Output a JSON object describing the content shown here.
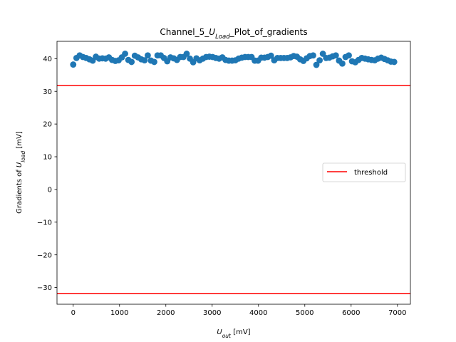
{
  "chart_data": {
    "type": "scatter",
    "title": "Channel_5_U_Load_Plot_of_gradients",
    "title_parts": {
      "pre": "Channel_5_",
      "var": "U",
      "sub": "Load",
      "post": "_Plot_of_gradients"
    },
    "xlabel": "U_out [mV]",
    "xlabel_parts": {
      "var": "U",
      "sub": "out",
      "post": " [mV]"
    },
    "ylabel": "Gradients of U_load [mV]",
    "ylabel_parts": {
      "pre": "Gradients of ",
      "var": "U",
      "sub": "load",
      "post": " [mV]"
    },
    "xlim": [
      -350,
      7280
    ],
    "ylim": [
      -35.1,
      45.3
    ],
    "xticks": [
      0,
      1000,
      2000,
      3000,
      4000,
      5000,
      6000,
      7000
    ],
    "xtick_labels": [
      "0",
      "1000",
      "2000",
      "3000",
      "4000",
      "5000",
      "6000",
      "7000"
    ],
    "yticks": [
      -30,
      -20,
      -10,
      0,
      10,
      20,
      30,
      40
    ],
    "ytick_labels": [
      "−30",
      "−20",
      "−10",
      "0",
      "10",
      "20",
      "30",
      "40"
    ],
    "grid": false,
    "legend": {
      "position": "center-right",
      "entries": [
        {
          "label": "threshold",
          "color": "#ff0000"
        }
      ]
    },
    "series": [
      {
        "type": "scatter",
        "color": "#1f77b4",
        "x": [
          0,
          70,
          140,
          210,
          280,
          350,
          420,
          490,
          560,
          630,
          700,
          770,
          840,
          910,
          980,
          1050,
          1120,
          1190,
          1260,
          1330,
          1400,
          1470,
          1540,
          1610,
          1680,
          1750,
          1820,
          1890,
          1960,
          2030,
          2100,
          2170,
          2240,
          2310,
          2380,
          2450,
          2520,
          2590,
          2660,
          2730,
          2800,
          2870,
          2940,
          3010,
          3080,
          3150,
          3220,
          3290,
          3360,
          3430,
          3500,
          3570,
          3640,
          3710,
          3780,
          3850,
          3920,
          3990,
          4060,
          4130,
          4200,
          4270,
          4340,
          4410,
          4480,
          4550,
          4620,
          4690,
          4760,
          4830,
          4900,
          4970,
          5040,
          5110,
          5180,
          5250,
          5320,
          5390,
          5460,
          5530,
          5600,
          5670,
          5740,
          5810,
          5880,
          5950,
          6020,
          6090,
          6160,
          6230,
          6300,
          6370,
          6440,
          6510,
          6580,
          6650,
          6720,
          6790,
          6860,
          6930
        ],
        "y": [
          38.2,
          40.2,
          41.0,
          40.5,
          40.2,
          39.8,
          39.4,
          40.6,
          40.0,
          40.1,
          40.0,
          40.4,
          39.6,
          39.3,
          39.5,
          40.4,
          41.5,
          39.6,
          39.0,
          40.9,
          40.4,
          39.8,
          39.5,
          41.0,
          39.4,
          39.0,
          41.0,
          41.0,
          40.2,
          39.2,
          40.4,
          40.1,
          39.6,
          40.5,
          40.5,
          41.5,
          40.0,
          38.9,
          40.1,
          39.5,
          40.0,
          40.5,
          40.6,
          40.5,
          40.2,
          40.0,
          40.4,
          39.6,
          39.4,
          39.4,
          39.5,
          40.0,
          40.3,
          40.5,
          40.5,
          40.5,
          39.4,
          39.4,
          40.3,
          40.3,
          40.5,
          40.9,
          39.5,
          40.2,
          40.2,
          40.2,
          40.2,
          40.4,
          40.8,
          40.6,
          39.8,
          39.3,
          40.1,
          40.8,
          41.0,
          38.1,
          39.5,
          41.5,
          40.2,
          40.3,
          40.7,
          41.0,
          39.4,
          38.5,
          40.5,
          41.0,
          39.2,
          38.9,
          39.6,
          40.2,
          40.0,
          39.8,
          39.6,
          39.5,
          40.0,
          40.3,
          39.9,
          39.5,
          39.1,
          39.0
        ]
      },
      {
        "type": "hline",
        "name": "threshold",
        "color": "#ff0000",
        "y": 31.8
      },
      {
        "type": "hline",
        "color": "#ff0000",
        "y": -31.8
      }
    ]
  }
}
